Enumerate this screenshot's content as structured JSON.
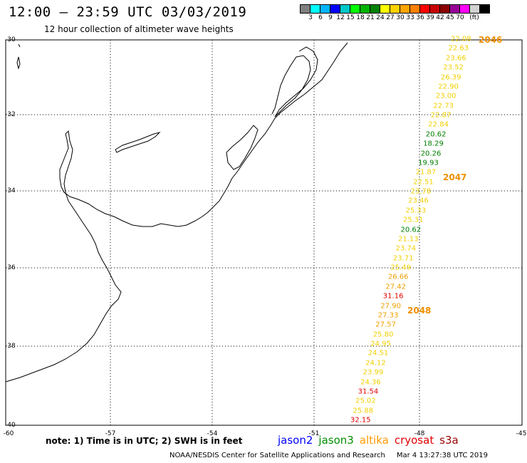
{
  "header": {
    "title": "12:00 – 23:59 UTC 03/03/2019",
    "subtitle": "12 hour collection of altimeter wave heights"
  },
  "legend": {
    "colors": [
      "#7f7f7f",
      "#00ffff",
      "#00b4ff",
      "#0000ff",
      "#00c8c8",
      "#00ff00",
      "#00b400",
      "#008000",
      "#ffff00",
      "#ffd200",
      "#ffa500",
      "#ff7f00",
      "#ff0000",
      "#c80000",
      "#8b0000",
      "#960096",
      "#ff00ff",
      "#d2d2d2",
      "#000000"
    ],
    "ticks": [
      "3",
      "6",
      "9",
      "12",
      "15",
      "18",
      "21",
      "24",
      "27",
      "30",
      "33",
      "36",
      "39",
      "42",
      "45",
      "70",
      "(ft)"
    ]
  },
  "axes": {
    "lat_labels": [
      "-30",
      "-32",
      "-34",
      "-36",
      "-38",
      "-40"
    ],
    "lon_labels": [
      "-60",
      "-57",
      "-54",
      "-51",
      "-48",
      "-45"
    ]
  },
  "passes": {
    "p2046": "2046",
    "p2047": "2047",
    "p2048": "2048"
  },
  "observations": [
    {
      "v": "22.08",
      "c": "#f0d000"
    },
    {
      "v": "22.63",
      "c": "#f0d000"
    },
    {
      "v": "23.66",
      "c": "#f0d000"
    },
    {
      "v": "23.52",
      "c": "#f0d000"
    },
    {
      "v": "26.39",
      "c": "#f0d000"
    },
    {
      "v": "22.90",
      "c": "#f0d000"
    },
    {
      "v": "23.00",
      "c": "#f0d000"
    },
    {
      "v": "22.73",
      "c": "#f0d000"
    },
    {
      "v": "22.87",
      "c": "#f0d000"
    },
    {
      "v": "22.84",
      "c": "#f0d000"
    },
    {
      "v": "20.62",
      "c": "#008000"
    },
    {
      "v": "18.29",
      "c": "#008000"
    },
    {
      "v": "20.26",
      "c": "#008000"
    },
    {
      "v": "19.93",
      "c": "#008000"
    },
    {
      "v": "21.87",
      "c": "#f0d000"
    },
    {
      "v": "22.51",
      "c": "#f0d000"
    },
    {
      "v": "23.78",
      "c": "#f0d000"
    },
    {
      "v": "23.46",
      "c": "#f0d000"
    },
    {
      "v": "25.33",
      "c": "#f0d000"
    },
    {
      "v": "25.31",
      "c": "#f0d000"
    },
    {
      "v": "20.62",
      "c": "#008000"
    },
    {
      "v": "21.13",
      "c": "#f0d000"
    },
    {
      "v": "23.74",
      "c": "#f0d000"
    },
    {
      "v": "23.71",
      "c": "#f0d000"
    },
    {
      "v": "25.49",
      "c": "#f0d000"
    },
    {
      "v": "26.66",
      "c": "#f0a000"
    },
    {
      "v": "27.42",
      "c": "#f0a000"
    },
    {
      "v": "31.16",
      "c": "#e00000"
    },
    {
      "v": "27.90",
      "c": "#f0a000"
    },
    {
      "v": "27.33",
      "c": "#f0a000"
    },
    {
      "v": "27.57",
      "c": "#f0a000"
    },
    {
      "v": "25.80",
      "c": "#f0d000"
    },
    {
      "v": "24.95",
      "c": "#f0d000"
    },
    {
      "v": "24.51",
      "c": "#f0d000"
    },
    {
      "v": "24.12",
      "c": "#f0d000"
    },
    {
      "v": "23.99",
      "c": "#f0d000"
    },
    {
      "v": "24.36",
      "c": "#f0d000"
    },
    {
      "v": "31.54",
      "c": "#e00000"
    },
    {
      "v": "25.02",
      "c": "#f0d000"
    },
    {
      "v": "25.88",
      "c": "#f0d000"
    },
    {
      "v": "32.15",
      "c": "#e00000"
    }
  ],
  "note": "note: 1) Time is in UTC; 2) SWH is in feet",
  "satellites": [
    {
      "name": "jason2",
      "color": "#0000ff"
    },
    {
      "name": "jason3",
      "color": "#009000"
    },
    {
      "name": "altika",
      "color": "#ff9900"
    },
    {
      "name": "cryosat",
      "color": "#e00000"
    },
    {
      "name": "s3a",
      "color": "#990000"
    }
  ],
  "footer": {
    "agency": "NOAA/NESDIS Center for Satellite Applications and Research",
    "timestamp": "Mar  4 13:27:38 UTC 2019"
  }
}
